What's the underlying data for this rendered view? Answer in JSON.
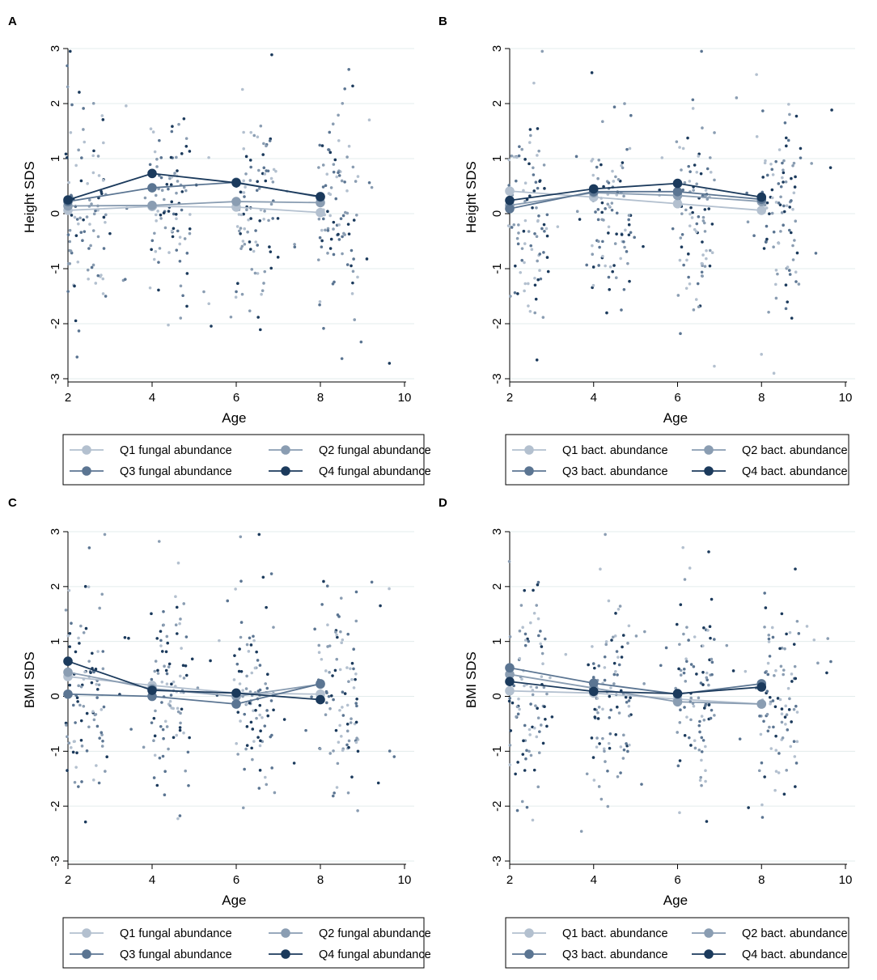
{
  "colors": {
    "Q1": "#b3c0cf",
    "Q2": "#8a9db2",
    "Q3": "#5b7592",
    "Q4": "#1b3a5c",
    "grid": "#e3ecec",
    "axis": "#000000"
  },
  "chart_data": [
    {
      "panel": "A",
      "type": "line",
      "xlabel": "Age",
      "ylabel": "Height SDS",
      "xlim": [
        2,
        10
      ],
      "ylim": [
        -3,
        3
      ],
      "xticks": [
        "2",
        "4",
        "6",
        "8",
        "10"
      ],
      "yticks": [
        "-3",
        "-2",
        "-1",
        "0",
        "1",
        "2",
        "3"
      ],
      "x": [
        2,
        4,
        6,
        8
      ],
      "series": [
        {
          "name": "Q1 fungal abundance",
          "values": [
            0.06,
            0.13,
            0.12,
            0.02
          ]
        },
        {
          "name": "Q2 fungal abundance",
          "values": [
            0.14,
            0.15,
            0.22,
            0.2
          ]
        },
        {
          "name": "Q3 fungal abundance",
          "values": [
            0.22,
            0.47,
            0.57,
            0.3
          ]
        },
        {
          "name": "Q4 fungal abundance",
          "values": [
            0.25,
            0.73,
            0.56,
            0.31
          ]
        }
      ],
      "legend": [
        "Q1 fungal abundance",
        "Q2 fungal abundance",
        "Q3 fungal abundance",
        "Q4 fungal abundance"
      ]
    },
    {
      "panel": "B",
      "type": "line",
      "xlabel": "Age",
      "ylabel": "Height SDS",
      "xlim": [
        2,
        10
      ],
      "ylim": [
        -3,
        3
      ],
      "xticks": [
        "2",
        "4",
        "6",
        "8",
        "10"
      ],
      "yticks": [
        "-3",
        "-2",
        "-1",
        "0",
        "1",
        "2",
        "3"
      ],
      "x": [
        2,
        4,
        6,
        8
      ],
      "series": [
        {
          "name": "Q1 bact. abundance",
          "values": [
            0.41,
            0.3,
            0.18,
            0.06
          ]
        },
        {
          "name": "Q2 bact. abundance",
          "values": [
            0.15,
            0.38,
            0.33,
            0.22
          ]
        },
        {
          "name": "Q3 bact. abundance",
          "values": [
            0.09,
            0.4,
            0.4,
            0.26
          ]
        },
        {
          "name": "Q4 bact. abundance",
          "values": [
            0.24,
            0.45,
            0.55,
            0.3
          ]
        }
      ],
      "legend": [
        "Q1 bact. abundance",
        "Q2 bact. abundance",
        "Q3 bact. abundance",
        "Q4 bact. abundance"
      ]
    },
    {
      "panel": "C",
      "type": "line",
      "xlabel": "Age",
      "ylabel": "BMI SDS",
      "xlim": [
        2,
        10
      ],
      "ylim": [
        -3,
        3
      ],
      "xticks": [
        "2",
        "4",
        "6",
        "8",
        "10"
      ],
      "yticks": [
        "-3",
        "-2",
        "-1",
        "0",
        "1",
        "2",
        "3"
      ],
      "x": [
        2,
        4,
        6,
        8
      ],
      "series": [
        {
          "name": "Q1 fungal abundance",
          "values": [
            0.36,
            0.2,
            0.06,
            0.04
          ]
        },
        {
          "name": "Q2 fungal abundance",
          "values": [
            0.44,
            0.14,
            0.0,
            0.22
          ]
        },
        {
          "name": "Q3 fungal abundance",
          "values": [
            0.04,
            0.0,
            -0.14,
            0.23
          ]
        },
        {
          "name": "Q4 fungal abundance",
          "values": [
            0.64,
            0.11,
            0.06,
            -0.06
          ]
        }
      ],
      "legend": [
        "Q1 fungal abundance",
        "Q2 fungal abundance",
        "Q3 fungal abundance",
        "Q4 fungal abundance"
      ]
    },
    {
      "panel": "D",
      "type": "line",
      "xlabel": "Age",
      "ylabel": "BMI SDS",
      "xlim": [
        2,
        10
      ],
      "ylim": [
        -3,
        3
      ],
      "xticks": [
        "2",
        "4",
        "6",
        "8",
        "10"
      ],
      "yticks": [
        "-3",
        "-2",
        "-1",
        "0",
        "1",
        "2",
        "3"
      ],
      "x": [
        2,
        4,
        6,
        8
      ],
      "series": [
        {
          "name": "Q1 bact. abundance",
          "values": [
            0.1,
            0.06,
            -0.05,
            -0.14
          ]
        },
        {
          "name": "Q2 bact. abundance",
          "values": [
            0.4,
            0.15,
            -0.1,
            -0.14
          ]
        },
        {
          "name": "Q3 bact. abundance",
          "values": [
            0.52,
            0.24,
            0.04,
            0.23
          ]
        },
        {
          "name": "Q4 bact. abundance",
          "values": [
            0.27,
            0.09,
            0.05,
            0.17
          ]
        }
      ],
      "legend": [
        "Q1 bact. abundance",
        "Q2 bact. abundance",
        "Q3 bact. abundance",
        "Q4 bact. abundance"
      ]
    }
  ]
}
